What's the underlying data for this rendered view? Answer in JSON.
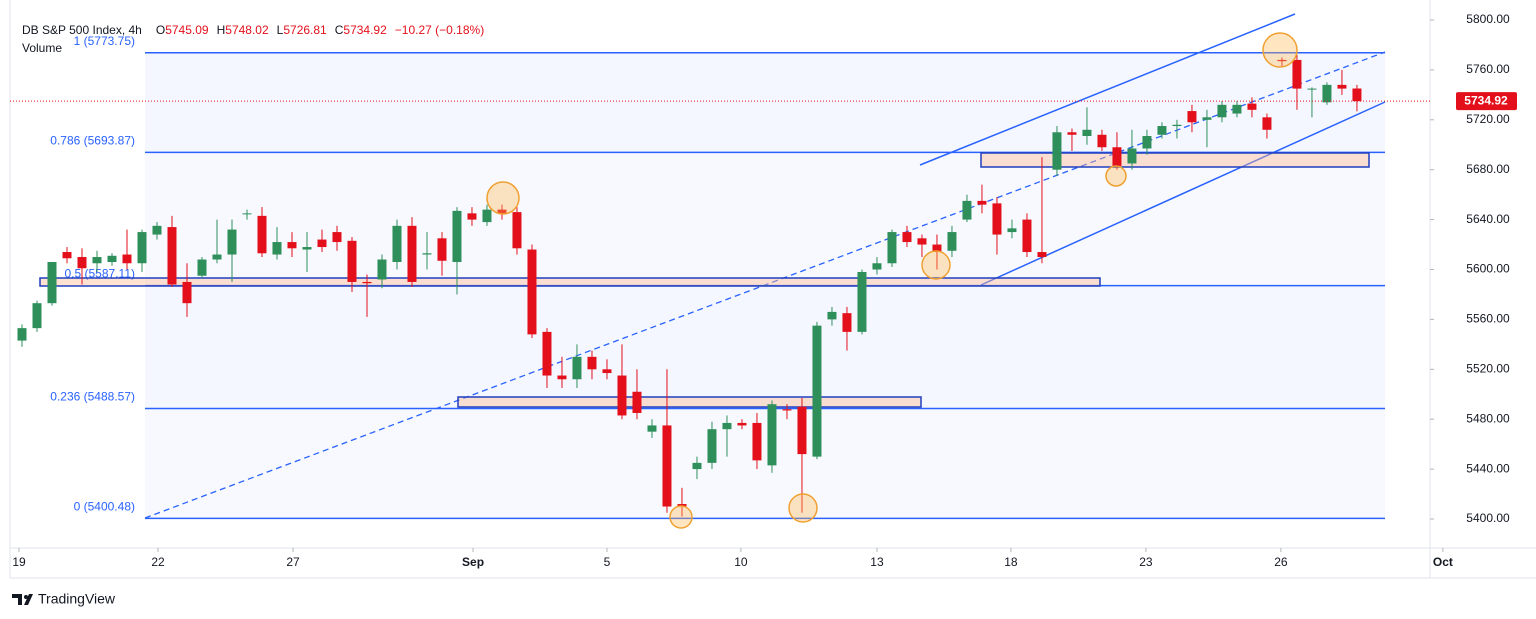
{
  "chart_data": {
    "type": "candlestick",
    "title": "DB S&P 500 Index, 4h",
    "ohlc_header": [
      {
        "label": "O",
        "value": 5745.09
      },
      {
        "label": "H",
        "value": 5748.02
      },
      {
        "label": "L",
        "value": 5726.81
      },
      {
        "label": "C",
        "value": 5734.92
      }
    ],
    "change": "−10.27 (−0.18%)",
    "volume_label": "Volume",
    "brand": "TradingView",
    "up_color": "#2f8f5b",
    "down_color": "#e3101b",
    "level_color": "#2962ff",
    "open": [
      5543,
      5553,
      5573,
      5614,
      5610,
      5605,
      5606,
      5612,
      5605,
      5628,
      5634,
      5590,
      5595,
      5608,
      5612,
      5645,
      5643,
      5612,
      5622,
      5616,
      5624,
      5630,
      5623,
      5590,
      5592,
      5606,
      5635,
      5612,
      5625,
      5606,
      5645,
      5638,
      5648,
      5646,
      5616,
      5550,
      5515,
      5512,
      5530,
      5520,
      5515,
      5502,
      5470,
      5475,
      5412,
      5440,
      5445,
      5472,
      5477,
      5477,
      5443,
      5488,
      5490,
      5450,
      5560,
      5565,
      5550,
      5600,
      5605,
      5630,
      5625,
      5620,
      5615,
      5640,
      5655,
      5653,
      5630,
      5640,
      5614,
      5680,
      5710,
      5707,
      5708,
      5698,
      5685,
      5697,
      5708,
      5715,
      5727,
      5720,
      5722,
      5725,
      5733,
      5722,
      5768,
      5768,
      5745,
      5734,
      5748,
      5745.09
    ],
    "high": [
      5556,
      5575,
      5606,
      5618,
      5617,
      5615,
      5613,
      5632,
      5632,
      5638,
      5643,
      5605,
      5610,
      5640,
      5640,
      5648,
      5650,
      5634,
      5630,
      5630,
      5632,
      5635,
      5626,
      5596,
      5612,
      5640,
      5642,
      5630,
      5630,
      5650,
      5650,
      5652,
      5652,
      5650,
      5620,
      5553,
      5530,
      5540,
      5535,
      5528,
      5540,
      5520,
      5480,
      5520,
      5425,
      5450,
      5478,
      5483,
      5480,
      5485,
      5495,
      5492,
      5497,
      5558,
      5570,
      5570,
      5600,
      5610,
      5632,
      5635,
      5628,
      5628,
      5635,
      5660,
      5668,
      5658,
      5640,
      5645,
      5690,
      5715,
      5713,
      5730,
      5712,
      5710,
      5712,
      5712,
      5718,
      5720,
      5732,
      5728,
      5735,
      5735,
      5738,
      5725,
      5770,
      5772,
      5746,
      5750,
      5760,
      5748.02
    ],
    "low": [
      5538,
      5550,
      5571,
      5605,
      5588,
      5598,
      5603,
      5600,
      5598,
      5624,
      5586,
      5562,
      5593,
      5605,
      5590,
      5640,
      5610,
      5608,
      5610,
      5598,
      5614,
      5615,
      5582,
      5562,
      5585,
      5600,
      5586,
      5600,
      5595,
      5580,
      5635,
      5635,
      5640,
      5612,
      5545,
      5505,
      5505,
      5505,
      5512,
      5512,
      5480,
      5480,
      5465,
      5405,
      5402,
      5432,
      5440,
      5450,
      5472,
      5440,
      5437,
      5480,
      5405,
      5448,
      5555,
      5535,
      5548,
      5596,
      5602,
      5618,
      5610,
      5600,
      5610,
      5638,
      5645,
      5612,
      5625,
      5610,
      5605,
      5675,
      5695,
      5700,
      5695,
      5680,
      5680,
      5692,
      5705,
      5705,
      5710,
      5698,
      5718,
      5722,
      5722,
      5705,
      5763,
      5728,
      5722,
      5732,
      5740,
      5726.81
    ],
    "close": [
      5553,
      5573,
      5606,
      5609,
      5601,
      5610,
      5611,
      5605,
      5630,
      5635,
      5588,
      5573,
      5608,
      5612,
      5632,
      5645,
      5613,
      5622,
      5617,
      5618,
      5618,
      5622,
      5590,
      5589,
      5608,
      5635,
      5590,
      5613,
      5607,
      5647,
      5640,
      5648,
      5645,
      5617,
      5548,
      5515,
      5512,
      5530,
      5520,
      5517,
      5483,
      5485,
      5475,
      5410,
      5410,
      5445,
      5472,
      5477,
      5475,
      5447,
      5492,
      5487,
      5452,
      5555,
      5566,
      5550,
      5598,
      5605,
      5630,
      5622,
      5620,
      5614,
      5630,
      5655,
      5652,
      5628,
      5633,
      5614,
      5610,
      5710,
      5708,
      5712,
      5698,
      5683,
      5697,
      5707,
      5715,
      5716,
      5718,
      5722,
      5732,
      5732,
      5728,
      5712,
      5767,
      5745,
      5745,
      5748,
      5745,
      5734.92
    ],
    "xlim": [
      -0.8,
      93.87
    ],
    "xticks": [
      {
        "value": -0.2,
        "label": "19"
      },
      {
        "value": 9.07,
        "label": "22"
      },
      {
        "value": 18.07,
        "label": "27"
      },
      {
        "value": 30.07,
        "label": "Sep"
      },
      {
        "value": 39,
        "label": "5"
      },
      {
        "value": 47.93,
        "label": "10"
      },
      {
        "value": 57,
        "label": "13"
      },
      {
        "value": 65.93,
        "label": "18"
      },
      {
        "value": 74.93,
        "label": "23"
      },
      {
        "value": 83.93,
        "label": "26"
      },
      {
        "value": 94.73,
        "label": "Oct"
      }
    ],
    "ylim": [
      5376.75,
      5816.03
    ],
    "yticks": [
      {
        "value": 5400,
        "label": "5400.00"
      },
      {
        "value": 5440,
        "label": "5440.00"
      },
      {
        "value": 5480,
        "label": "5480.00"
      },
      {
        "value": 5520,
        "label": "5520.00"
      },
      {
        "value": 5560,
        "label": "5560.00"
      },
      {
        "value": 5600,
        "label": "5600.00"
      },
      {
        "value": 5640,
        "label": "5640.00"
      },
      {
        "value": 5680,
        "label": "5680.00"
      },
      {
        "value": 5720,
        "label": "5720.00"
      },
      {
        "value": 5760,
        "label": "5760.00"
      },
      {
        "value": 5800,
        "label": "5800.00"
      }
    ],
    "fib_levels": [
      {
        "label": "1 (5773.75)",
        "value": 5773.75
      },
      {
        "label": "0.786 (5693.87)",
        "value": 5693.87
      },
      {
        "label": "0.5 (5587.11)",
        "value": 5587.11
      },
      {
        "label": "0.236 (5488.57)",
        "value": 5488.57
      },
      {
        "label": "0 (5400.48)",
        "value": 5400.48
      }
    ]
  }
}
